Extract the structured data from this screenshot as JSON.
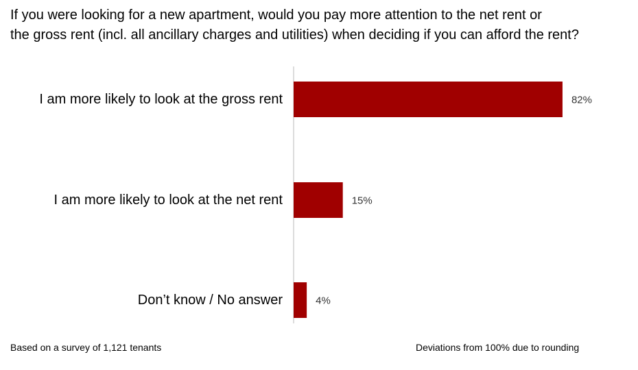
{
  "title": {
    "line1": "If you were looking for a new apartment, would you pay more attention to the net rent or",
    "line2": "the gross rent (incl. all ancillary charges and utilities) when deciding if you can afford the rent?"
  },
  "chart_data": {
    "type": "bar",
    "orientation": "horizontal",
    "categories": [
      "I am more likely to look at the gross rent",
      "I am more likely to look at the net rent",
      "Don’t know / No answer"
    ],
    "values": [
      82,
      15,
      4
    ],
    "value_labels": [
      "82%",
      "15%",
      "4%"
    ],
    "unit": "%",
    "xlim": [
      0,
      100
    ],
    "grid": false,
    "legend": "none",
    "bar_color": "#a00000"
  },
  "footer": {
    "left": "Based on a survey of 1,121 tenants",
    "right": "Deviations from 100% due to rounding"
  }
}
